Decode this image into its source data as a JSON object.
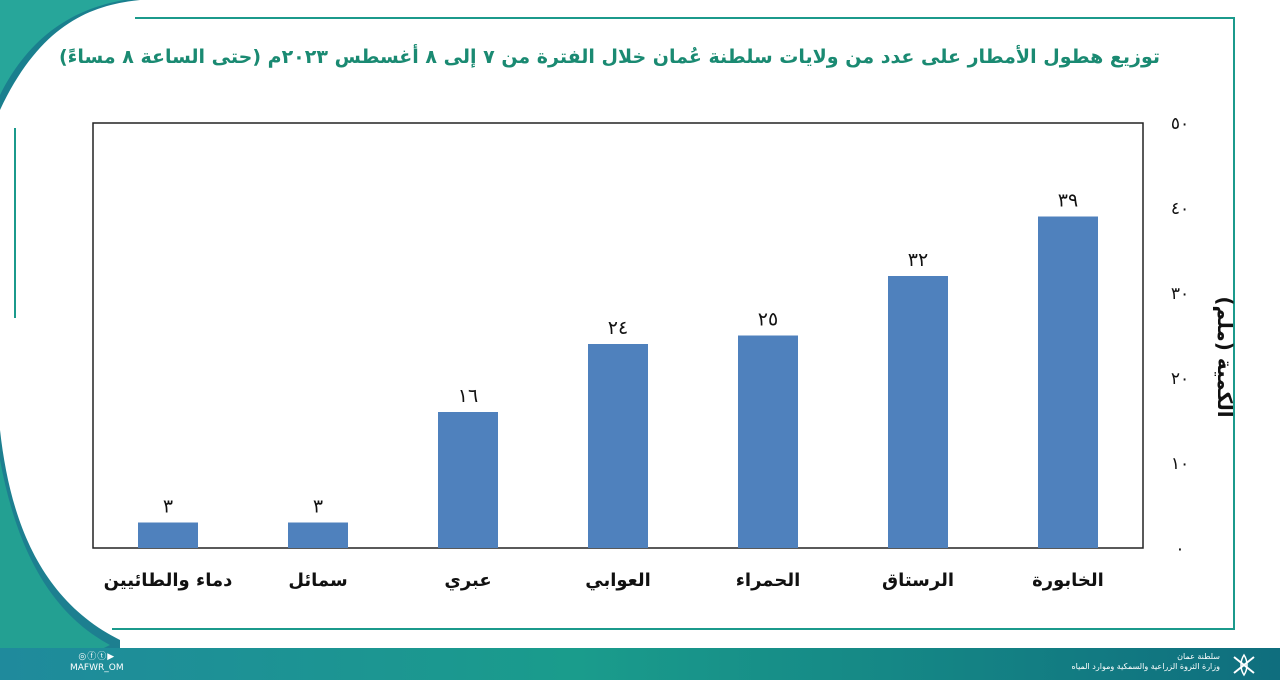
{
  "chart_data": {
    "type": "bar",
    "title": "توزيع هطول الأمطار على عدد من ولايات سلطنة عُمان خلال الفترة من ٧ إلى ٨ أغسطس ٢٠٢٣م (حتى الساعة ٨ مساءً)",
    "ylabel": "الكمية (ملم)",
    "xlabel": "",
    "ylim": [
      0,
      50
    ],
    "yticks": [
      0,
      10,
      20,
      30,
      40,
      50
    ],
    "ytick_labels": [
      "٠",
      "١٠",
      "٢٠",
      "٣٠",
      "٤٠",
      "٥٠"
    ],
    "categories": [
      "دماء والطائيين",
      "سمائل",
      "عبري",
      "العوابي",
      "الحمراء",
      "الرستاق",
      "الخابورة"
    ],
    "values": [
      3,
      3,
      16,
      24,
      25,
      32,
      39
    ],
    "value_labels": [
      "٣",
      "٣",
      "١٦",
      "٢٤",
      "٢٥",
      "٣٢",
      "٣٩"
    ],
    "bar_color": "#4f81bd",
    "grid": false
  },
  "footer": {
    "handle": "MAFWR_OM",
    "ministry_line1": "سلطنة عمان",
    "ministry_line2": "وزارة الثروة الزراعية والسمكية وموارد المياه"
  },
  "colors": {
    "accent": "#1b9a8c",
    "title": "#1a8a72",
    "footer": "#1a9c8c"
  }
}
